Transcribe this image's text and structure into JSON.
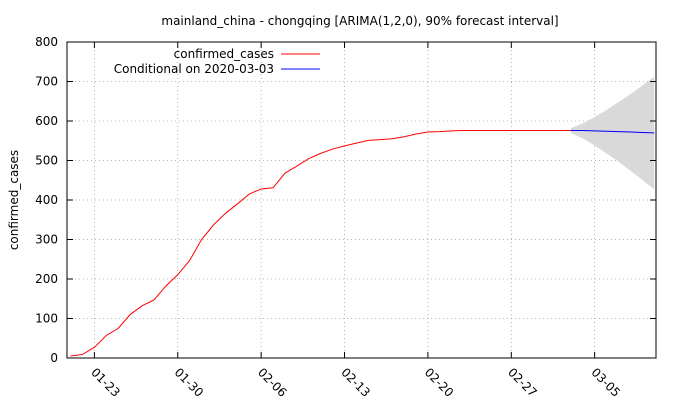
{
  "chart_data": {
    "type": "line",
    "title": "mainland_china - chongqing [ARIMA(1,2,0), 90% forecast interval]",
    "ylabel": "confirmed_cases",
    "xlabel": "",
    "ylim": [
      0,
      800
    ],
    "yticks": [
      0,
      100,
      200,
      300,
      400,
      500,
      600,
      700,
      800
    ],
    "xticks": [
      "01-23",
      "01-30",
      "02-06",
      "02-13",
      "02-20",
      "02-27",
      "03-05"
    ],
    "xlim": [
      "2020-01-21",
      "2020-03-10"
    ],
    "grid": true,
    "legend_position": "top-left",
    "series": [
      {
        "name": "confirmed_cases",
        "color": "#ff0000",
        "x": [
          "2020-01-21",
          "2020-01-22",
          "2020-01-23",
          "2020-01-24",
          "2020-01-25",
          "2020-01-26",
          "2020-01-27",
          "2020-01-28",
          "2020-01-29",
          "2020-01-30",
          "2020-01-31",
          "2020-02-01",
          "2020-02-02",
          "2020-02-03",
          "2020-02-04",
          "2020-02-05",
          "2020-02-06",
          "2020-02-07",
          "2020-02-08",
          "2020-02-09",
          "2020-02-10",
          "2020-02-11",
          "2020-02-12",
          "2020-02-13",
          "2020-02-14",
          "2020-02-15",
          "2020-02-16",
          "2020-02-17",
          "2020-02-18",
          "2020-02-19",
          "2020-02-20",
          "2020-02-21",
          "2020-02-22",
          "2020-02-23",
          "2020-02-24",
          "2020-02-25",
          "2020-02-26",
          "2020-02-27",
          "2020-02-28",
          "2020-02-29",
          "2020-03-01",
          "2020-03-02",
          "2020-03-03"
        ],
        "y": [
          5,
          9,
          27,
          57,
          75,
          110,
          132,
          147,
          182,
          211,
          247,
          300,
          337,
          366,
          390,
          415,
          428,
          431,
          468,
          486,
          505,
          518,
          529,
          537,
          544,
          551,
          553,
          555,
          560,
          567,
          572,
          573,
          575,
          576,
          576,
          576,
          576,
          576,
          576,
          576,
          576,
          576,
          576
        ]
      },
      {
        "name": "Conditional on 2020-03-03",
        "color": "#0000ff",
        "x": [
          "2020-03-03",
          "2020-03-04",
          "2020-03-05",
          "2020-03-06",
          "2020-03-07",
          "2020-03-08",
          "2020-03-09",
          "2020-03-10"
        ],
        "y": [
          576,
          576,
          575,
          574,
          573,
          572,
          571,
          570
        ]
      }
    ],
    "forecast_interval": {
      "level": "90%",
      "color": "#d9d9d9",
      "x": [
        "2020-03-03",
        "2020-03-04",
        "2020-03-05",
        "2020-03-06",
        "2020-03-07",
        "2020-03-08",
        "2020-03-09",
        "2020-03-10"
      ],
      "upper": [
        582,
        594,
        610,
        628,
        648,
        668,
        690,
        712
      ],
      "lower": [
        570,
        556,
        538,
        518,
        497,
        474,
        451,
        427
      ]
    }
  }
}
